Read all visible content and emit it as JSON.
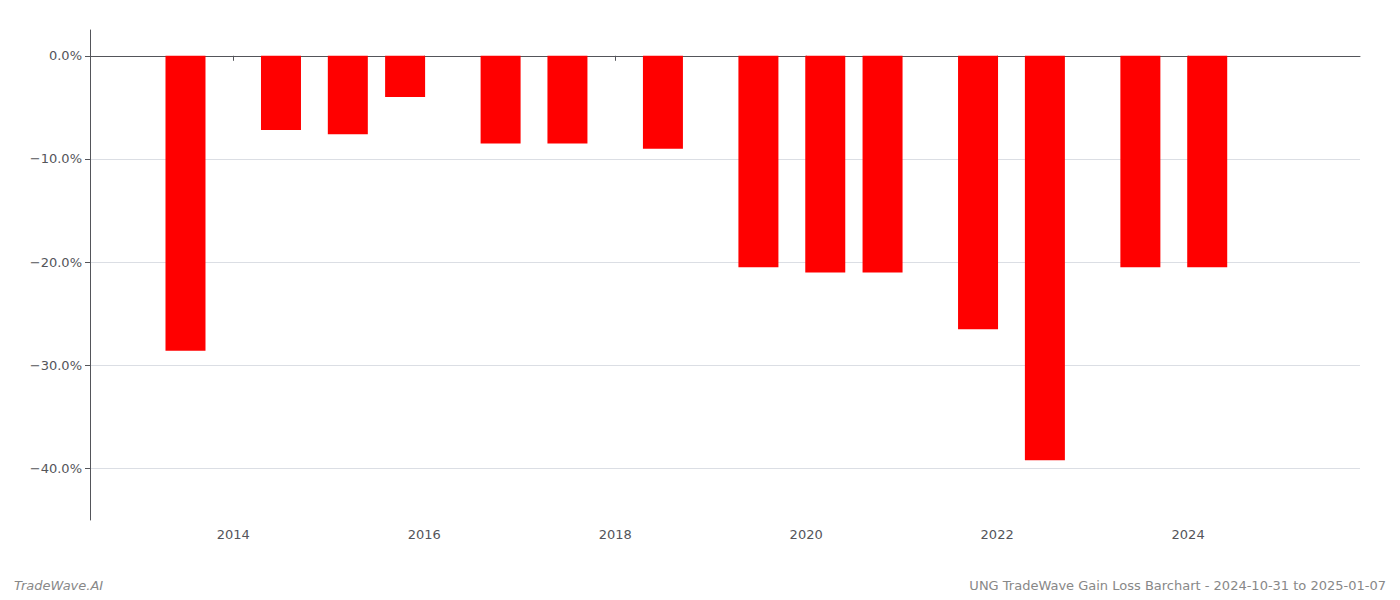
{
  "chart_data": {
    "type": "bar",
    "x": [
      2013.5,
      2014.5,
      2015.2,
      2015.8,
      2016.8,
      2017.5,
      2018.5,
      2019.5,
      2020.2,
      2020.8,
      2021.8,
      2022.5,
      2023.5,
      2024.2
    ],
    "values": [
      -0.286,
      -0.072,
      -0.076,
      -0.04,
      -0.085,
      -0.085,
      -0.09,
      -0.205,
      -0.21,
      -0.21,
      -0.265,
      -0.392,
      -0.205,
      -0.205
    ],
    "color": "#ff0000",
    "xlim": [
      2012.5,
      2025.8
    ],
    "xticks": [
      2014,
      2016,
      2018,
      2020,
      2022,
      2024
    ],
    "ylim": [
      -0.45,
      0.025
    ],
    "yticks": [
      {
        "value": 0.0,
        "label": "0.0%"
      },
      {
        "value": -0.1,
        "label": "−10.0%"
      },
      {
        "value": -0.2,
        "label": "−20.0%"
      },
      {
        "value": -0.3,
        "label": "−30.0%"
      },
      {
        "value": -0.4,
        "label": "−40.0%"
      }
    ],
    "grid": true,
    "annotations": [
      "TradeWave.AI",
      "UNG TradeWave Gain Loss Barchart - 2024-10-31 to 2025-01-07"
    ]
  }
}
